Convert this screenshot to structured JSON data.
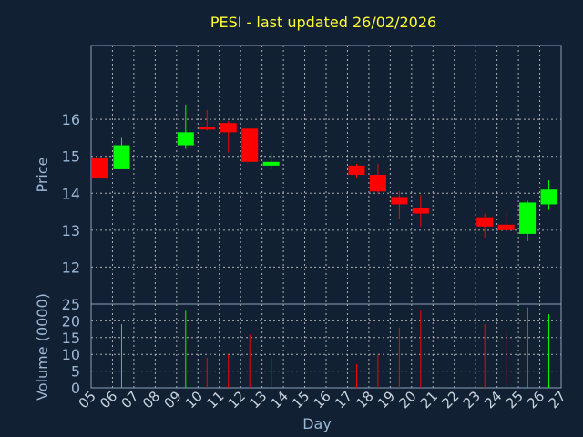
{
  "chart_data": {
    "type": "candlestick",
    "title": "PESI - last updated 26/02/2026",
    "xlabel": "Day",
    "price_ylabel": "Price",
    "volume_ylabel": "Volume (0000)",
    "x_ticks": [
      "05",
      "06",
      "07",
      "08",
      "09",
      "10",
      "11",
      "12",
      "13",
      "14",
      "15",
      "16",
      "17",
      "18",
      "19",
      "20",
      "21",
      "22",
      "23",
      "24",
      "25",
      "26",
      "27"
    ],
    "price_yticks": [
      12,
      13,
      14,
      15,
      16
    ],
    "price_ylim": [
      11.0,
      18.0
    ],
    "volume_yticks": [
      0,
      5,
      10,
      15,
      20,
      25
    ],
    "volume_ylim": [
      0,
      25
    ],
    "colors": {
      "up": "#00ff00",
      "down": "#ff0000",
      "title": "#ffff33",
      "label": "#9bb7d4",
      "background": "#112033"
    },
    "candles": [
      {
        "day": "05",
        "open": 14.95,
        "close": 14.4,
        "high": 14.95,
        "low": 14.4,
        "volume": 0
      },
      {
        "day": "06",
        "open": 14.65,
        "close": 15.3,
        "high": 15.5,
        "low": 14.65,
        "volume": 19
      },
      {
        "day": "09",
        "open": 15.3,
        "close": 15.65,
        "high": 16.4,
        "low": 15.2,
        "volume": 23
      },
      {
        "day": "10",
        "open": 15.8,
        "close": 15.75,
        "high": 16.25,
        "low": 15.7,
        "volume": 9
      },
      {
        "day": "11",
        "open": 15.9,
        "close": 15.65,
        "high": 15.95,
        "low": 15.1,
        "volume": 10
      },
      {
        "day": "12",
        "open": 15.75,
        "close": 14.85,
        "high": 15.75,
        "low": 14.85,
        "volume": 16
      },
      {
        "day": "13",
        "open": 14.75,
        "close": 14.85,
        "high": 15.1,
        "low": 14.65,
        "volume": 9
      },
      {
        "day": "17",
        "open": 14.75,
        "close": 14.5,
        "high": 14.8,
        "low": 14.4,
        "volume": 7
      },
      {
        "day": "18",
        "open": 14.5,
        "close": 14.05,
        "high": 14.8,
        "low": 14.0,
        "volume": 10
      },
      {
        "day": "19",
        "open": 13.9,
        "close": 13.7,
        "high": 14.05,
        "low": 13.3,
        "volume": 18
      },
      {
        "day": "20",
        "open": 13.6,
        "close": 13.45,
        "high": 13.95,
        "low": 13.1,
        "volume": 23
      },
      {
        "day": "23",
        "open": 13.35,
        "close": 13.1,
        "high": 13.45,
        "low": 12.8,
        "volume": 19
      },
      {
        "day": "24",
        "open": 13.15,
        "close": 13.0,
        "high": 13.5,
        "low": 12.95,
        "volume": 17
      },
      {
        "day": "25",
        "open": 12.9,
        "close": 13.75,
        "high": 13.8,
        "low": 12.7,
        "volume": 24
      },
      {
        "day": "26",
        "open": 13.7,
        "close": 14.1,
        "high": 14.35,
        "low": 13.55,
        "volume": 22
      }
    ]
  }
}
